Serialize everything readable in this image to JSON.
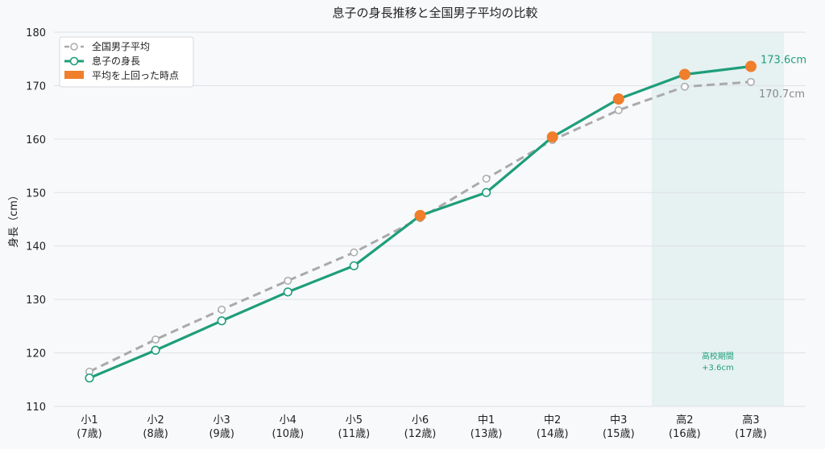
{
  "chart_data": {
    "type": "line",
    "title": "息子の身長推移と全国男子平均の比較",
    "xlabel": "",
    "ylabel": "身長（cm）",
    "ylim": [
      110,
      180
    ],
    "yticks": [
      110,
      120,
      130,
      140,
      150,
      160,
      170,
      180
    ],
    "grid": true,
    "legend_position": "top-left",
    "categories": [
      [
        "小1",
        "(7歳)"
      ],
      [
        "小2",
        "(8歳)"
      ],
      [
        "小3",
        "(9歳)"
      ],
      [
        "小4",
        "(10歳)"
      ],
      [
        "小5",
        "(11歳)"
      ],
      [
        "小6",
        "(12歳)"
      ],
      [
        "中1",
        "(13歳)"
      ],
      [
        "中2",
        "(14歳)"
      ],
      [
        "中3",
        "(15歳)"
      ],
      [
        "高2",
        "(16歳)"
      ],
      [
        "高3",
        "(17歳)"
      ]
    ],
    "series": [
      {
        "name": "全国男子平均",
        "color": "#aaaaaa",
        "style": "dashed",
        "values": [
          116.5,
          122.5,
          128.1,
          133.5,
          138.8,
          145.2,
          152.6,
          159.8,
          165.4,
          169.8,
          170.7
        ]
      },
      {
        "name": "息子の身長",
        "color": "#1e9e7a",
        "style": "solid",
        "values": [
          115.3,
          120.5,
          126.0,
          131.4,
          136.3,
          145.7,
          150.0,
          160.4,
          167.5,
          172.1,
          173.6
        ]
      }
    ],
    "highlight_points": {
      "name": "平均を上回った時点",
      "color": "#f07e2a",
      "indices": [
        5,
        7,
        8,
        9,
        10
      ]
    },
    "shaded_region": {
      "from_index": 9,
      "to_index": 10,
      "label_line1": "高校期間",
      "label_line2": "+3.6cm",
      "color": "#1e9e7a"
    },
    "end_labels": {
      "son": "173.6cm",
      "avg": "170.7cm"
    }
  }
}
